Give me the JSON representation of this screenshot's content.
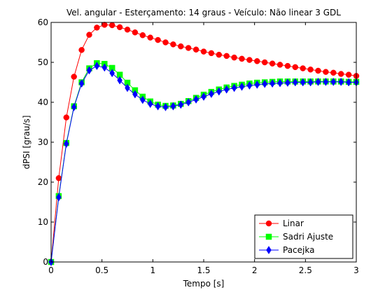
{
  "chart_data": {
    "type": "line",
    "title": "Vel. angular - Esterçamento: 14 graus - Veículo: Não linear 3 GDL",
    "xlabel": "Tempo [s]",
    "ylabel": "dPSI [grau/s]",
    "xlim": [
      0,
      3
    ],
    "ylim": [
      0,
      60
    ],
    "xticks": [
      0,
      0.5,
      1,
      1.5,
      2,
      2.5,
      3
    ],
    "xtick_labels": [
      "0",
      "0.5",
      "1",
      "1.5",
      "2",
      "2.5",
      "3"
    ],
    "yticks": [
      0,
      10,
      20,
      30,
      40,
      50,
      60
    ],
    "ytick_labels": [
      "0",
      "10",
      "20",
      "30",
      "40",
      "50",
      "60"
    ],
    "grid": false,
    "legend_position": "bottom-right",
    "x": [
      0,
      0.075,
      0.15,
      0.225,
      0.3,
      0.375,
      0.45,
      0.525,
      0.6,
      0.675,
      0.75,
      0.825,
      0.9,
      0.975,
      1.05,
      1.125,
      1.2,
      1.275,
      1.35,
      1.425,
      1.5,
      1.575,
      1.65,
      1.725,
      1.8,
      1.875,
      1.95,
      2.025,
      2.1,
      2.175,
      2.25,
      2.325,
      2.4,
      2.475,
      2.55,
      2.625,
      2.7,
      2.775,
      2.85,
      2.925,
      3.0
    ],
    "series": [
      {
        "name": "Linar",
        "color": "#ff0000",
        "marker_color": "#ff0000",
        "marker": "circle",
        "values": [
          0,
          21.0,
          36.2,
          46.4,
          53.1,
          56.9,
          58.7,
          59.4,
          59.3,
          58.8,
          58.2,
          57.5,
          56.8,
          56.2,
          55.6,
          55.0,
          54.5,
          54.0,
          53.6,
          53.2,
          52.7,
          52.3,
          51.9,
          51.6,
          51.2,
          50.9,
          50.6,
          50.3,
          50.0,
          49.7,
          49.4,
          49.1,
          48.8,
          48.5,
          48.2,
          47.9,
          47.6,
          47.4,
          47.1,
          46.9,
          46.6
        ]
      },
      {
        "name": "Sadri Ajuste",
        "color": "#00ff00",
        "marker_color": "#00ff00",
        "marker": "square",
        "values": [
          0,
          16.5,
          29.8,
          39.0,
          45.0,
          48.5,
          49.8,
          49.6,
          48.6,
          46.9,
          44.9,
          43.0,
          41.4,
          40.2,
          39.4,
          39.1,
          39.2,
          39.6,
          40.3,
          41.1,
          41.9,
          42.6,
          43.2,
          43.7,
          44.1,
          44.4,
          44.7,
          44.9,
          45.0,
          45.1,
          45.2,
          45.2,
          45.2,
          45.2,
          45.2,
          45.2,
          45.2,
          45.2,
          45.2,
          45.1,
          45.1
        ]
      },
      {
        "name": "Pacejka",
        "color": "#0000ff",
        "marker_color": "#0000ff",
        "marker": "diamond",
        "values": [
          0,
          16.2,
          29.6,
          38.8,
          44.7,
          48.0,
          49.1,
          48.7,
          47.3,
          45.5,
          43.6,
          42.0,
          40.6,
          39.6,
          39.0,
          38.8,
          39.0,
          39.4,
          40.0,
          40.7,
          41.4,
          42.1,
          42.7,
          43.2,
          43.6,
          43.9,
          44.2,
          44.4,
          44.6,
          44.7,
          44.8,
          44.9,
          45.0,
          45.0,
          45.0,
          45.1,
          45.1,
          45.1,
          45.1,
          45.0,
          45.0
        ]
      }
    ]
  }
}
